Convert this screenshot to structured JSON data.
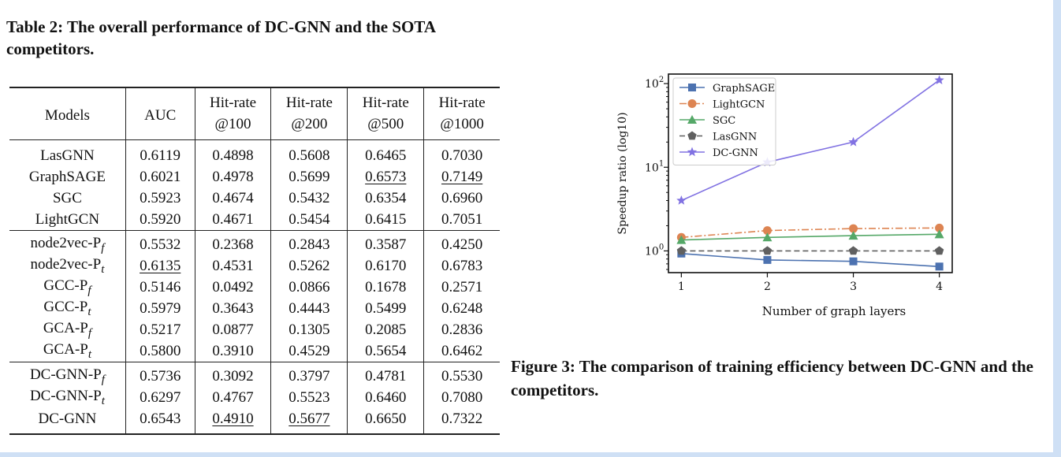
{
  "table": {
    "caption": "Table 2: The overall performance of DC-GNN and the SOTA competitors.",
    "header": {
      "models": "Models",
      "auc": "AUC",
      "cols": [
        {
          "top": "Hit-rate",
          "bottom": "@100"
        },
        {
          "top": "Hit-rate",
          "bottom": "@200"
        },
        {
          "top": "Hit-rate",
          "bottom": "@500"
        },
        {
          "top": "Hit-rate",
          "bottom": "@1000"
        }
      ]
    },
    "rows": [
      {
        "base": "LasGNN",
        "vals": [
          "0.6119",
          "0.4898",
          "0.5608",
          "0.6465",
          "0.7030"
        ]
      },
      {
        "base": "GraphSAGE",
        "vals": [
          "0.6021",
          "0.4978",
          "0.5699",
          "0.6573",
          "0.7149"
        ]
      },
      {
        "base": "SGC",
        "vals": [
          "0.5923",
          "0.4674",
          "0.5432",
          "0.6354",
          "0.6960"
        ]
      },
      {
        "base": "LightGCN",
        "vals": [
          "0.5920",
          "0.4671",
          "0.5454",
          "0.6415",
          "0.7051"
        ]
      },
      {
        "base": "node2vec-P",
        "sub": "f",
        "vals": [
          "0.5532",
          "0.2368",
          "0.2843",
          "0.3587",
          "0.4250"
        ]
      },
      {
        "base": "node2vec-P",
        "sub": "t",
        "vals": [
          "0.6135",
          "0.4531",
          "0.5262",
          "0.6170",
          "0.6783"
        ]
      },
      {
        "base": "GCC-P",
        "sub": "f",
        "vals": [
          "0.5146",
          "0.0492",
          "0.0866",
          "0.1678",
          "0.2571"
        ]
      },
      {
        "base": "GCC-P",
        "sub": "t",
        "vals": [
          "0.5979",
          "0.3643",
          "0.4443",
          "0.5499",
          "0.6248"
        ]
      },
      {
        "base": "GCA-P",
        "sub": "f",
        "vals": [
          "0.5217",
          "0.0877",
          "0.1305",
          "0.2085",
          "0.2836"
        ]
      },
      {
        "base": "GCA-P",
        "sub": "t",
        "vals": [
          "0.5800",
          "0.3910",
          "0.4529",
          "0.5654",
          "0.6462"
        ]
      },
      {
        "base": "DC-GNN-P",
        "sub": "f",
        "vals": [
          "0.5736",
          "0.3092",
          "0.3797",
          "0.4781",
          "0.5530"
        ]
      },
      {
        "base": "DC-GNN-P",
        "sub": "t",
        "vals": [
          "0.6297",
          "0.4767",
          "0.5523",
          "0.6460",
          "0.7080"
        ]
      },
      {
        "base": "DC-GNN",
        "vals": [
          "0.6543",
          "0.4910",
          "0.5677",
          "0.6650",
          "0.7322"
        ]
      }
    ]
  },
  "figure": {
    "caption": "Figure 3: The comparison of training efficiency between DC-GNN and the competitors."
  },
  "chart_data": {
    "type": "line",
    "xlabel": "Number of graph layers",
    "ylabel": "Speedup ratio (log10)",
    "yscale": "log",
    "ylim": [
      0.55,
      130
    ],
    "x": [
      1,
      2,
      3,
      4
    ],
    "x_ticks": [
      "1",
      "2",
      "3",
      "4"
    ],
    "y_ticks": [
      {
        "value": 1,
        "base": "10",
        "exp": "0"
      },
      {
        "value": 10,
        "base": "10",
        "exp": "1"
      },
      {
        "value": 100,
        "base": "10",
        "exp": "2"
      }
    ],
    "legend_position": "top-left",
    "series": [
      {
        "name": "GraphSAGE",
        "values": [
          0.93,
          0.78,
          0.75,
          0.65
        ],
        "color": "#4c72b0",
        "marker": "square",
        "dash": "solid"
      },
      {
        "name": "LightGCN",
        "values": [
          1.45,
          1.75,
          1.85,
          1.88
        ],
        "color": "#dd8452",
        "marker": "circle",
        "dash": "dashdot"
      },
      {
        "name": "SGC",
        "values": [
          1.35,
          1.45,
          1.52,
          1.58
        ],
        "color": "#55a868",
        "marker": "triangle",
        "dash": "solid"
      },
      {
        "name": "LasGNN",
        "values": [
          1.0,
          1.0,
          1.0,
          1.0
        ],
        "color": "#606060",
        "marker": "pentagon",
        "dash": "dashed"
      },
      {
        "name": "DC-GNN",
        "values": [
          4.0,
          11.5,
          20.0,
          110.0
        ],
        "color": "#8172e2",
        "marker": "star",
        "dash": "solid"
      }
    ]
  }
}
